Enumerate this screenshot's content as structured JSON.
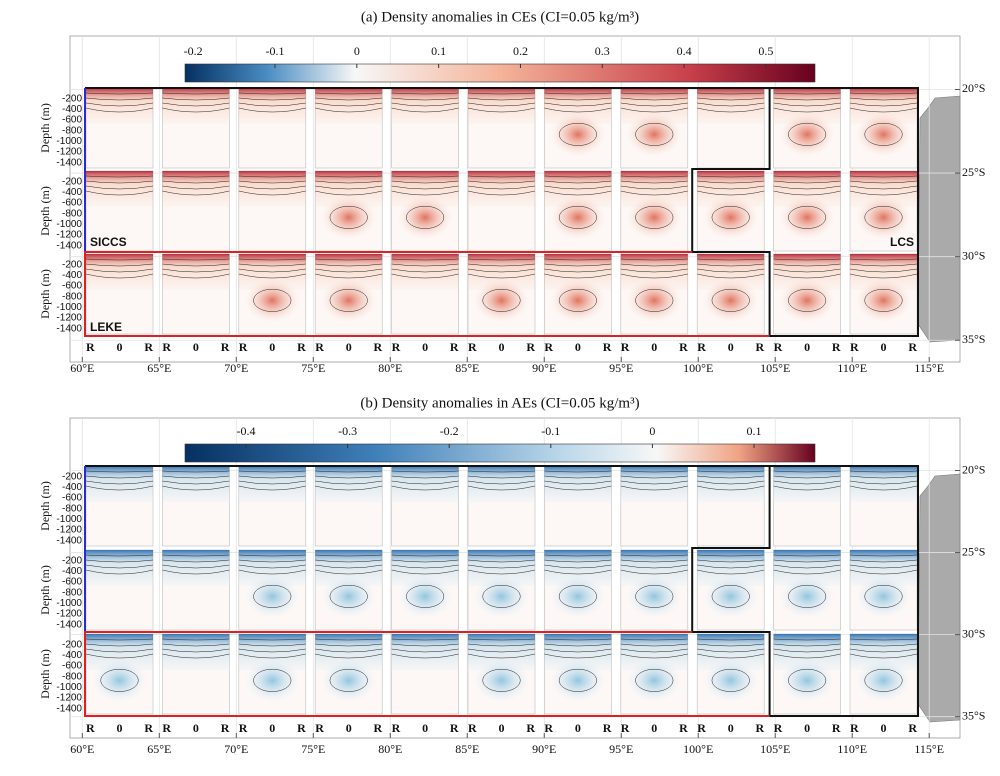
{
  "chart_data": [
    {
      "type": "contour",
      "title": "(a) Density anomalies in CEs (CI=0.05 kg/m³)",
      "colorbar": {
        "clim": [
          -0.21,
          0.56
        ],
        "ticks": [
          -0.2,
          -0.1,
          0,
          0.1,
          0.2,
          0.3,
          0.4,
          0.5
        ]
      },
      "xlim": [
        59.2,
        117
      ],
      "xticks": [
        {
          "value": 60,
          "label": "60°E"
        },
        {
          "value": 65,
          "label": "65°E"
        },
        {
          "value": 70,
          "label": "70°E"
        },
        {
          "value": 75,
          "label": "75°E"
        },
        {
          "value": 80,
          "label": "80°E"
        },
        {
          "value": 85,
          "label": "85°E"
        },
        {
          "value": 90,
          "label": "90°E"
        },
        {
          "value": 95,
          "label": "95°E"
        },
        {
          "value": 100,
          "label": "100°E"
        },
        {
          "value": 105,
          "label": "105°E"
        },
        {
          "value": 110,
          "label": "110°E"
        },
        {
          "value": 115,
          "label": "115°E"
        }
      ],
      "ylim": [
        -36.3,
        -16.8
      ],
      "yticks": [
        {
          "value": -20,
          "label": "20°S"
        },
        {
          "value": -25,
          "label": "25°S"
        },
        {
          "value": -30,
          "label": "30°S"
        },
        {
          "value": -35,
          "label": "35°S"
        }
      ],
      "depth_label": "Depth (m)",
      "depth_lim": [
        -1500,
        0
      ],
      "depth_ticks": [
        -200,
        -400,
        -600,
        -800,
        -1000,
        -1200,
        -1400
      ],
      "cell_xlabels": [
        "R",
        "0",
        "R"
      ],
      "region_labels": [
        "SICCS",
        "LCS",
        "LEKE"
      ],
      "grid": true
    },
    {
      "type": "contour",
      "title": "(b) Density anomalies in AEs (CI=0.05 kg/m³)",
      "colorbar": {
        "clim": [
          -0.46,
          0.16
        ],
        "ticks": [
          -0.4,
          -0.3,
          -0.2,
          -0.1,
          0,
          0.1
        ]
      },
      "xlim": [
        59.2,
        117
      ],
      "xticks": [
        {
          "value": 60,
          "label": "60°E"
        },
        {
          "value": 65,
          "label": "65°E"
        },
        {
          "value": 70,
          "label": "70°E"
        },
        {
          "value": 75,
          "label": "75°E"
        },
        {
          "value": 80,
          "label": "80°E"
        },
        {
          "value": 85,
          "label": "85°E"
        },
        {
          "value": 90,
          "label": "90°E"
        },
        {
          "value": 95,
          "label": "95°E"
        },
        {
          "value": 100,
          "label": "100°E"
        },
        {
          "value": 105,
          "label": "105°E"
        },
        {
          "value": 110,
          "label": "110°E"
        },
        {
          "value": 115,
          "label": "115°E"
        }
      ],
      "ylim": [
        -36.3,
        -16.8
      ],
      "yticks": [
        {
          "value": -20,
          "label": "20°S"
        },
        {
          "value": -25,
          "label": "25°S"
        },
        {
          "value": -30,
          "label": "30°S"
        },
        {
          "value": -35,
          "label": "35°S"
        }
      ],
      "depth_label": "Depth (m)",
      "depth_lim": [
        -1500,
        0
      ],
      "depth_ticks": [
        -200,
        -400,
        -600,
        -800,
        -1000,
        -1200,
        -1400
      ],
      "cell_xlabels": [
        "R",
        "0",
        "R"
      ],
      "grid": true
    }
  ]
}
